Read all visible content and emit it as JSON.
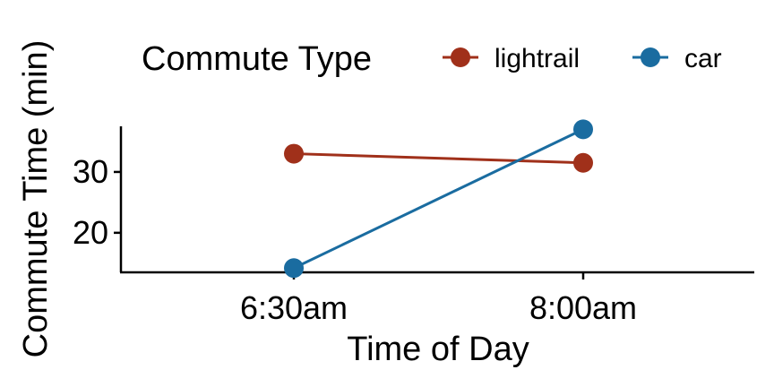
{
  "chart_data": {
    "type": "line",
    "title": "",
    "xlabel": "Time of Day",
    "ylabel": "Commute Time (min)",
    "categories": [
      "6:30am",
      "8:00am"
    ],
    "ylim": [
      13.5,
      37.5
    ],
    "yticks": [
      20,
      30
    ],
    "grid": false,
    "legend": {
      "title": "Commute Type",
      "placement": "top"
    },
    "series": [
      {
        "name": "lightrail",
        "color": "#A0301A",
        "values": [
          33.0,
          31.5
        ]
      },
      {
        "name": "car",
        "color": "#1A6CA0",
        "values": [
          14.2,
          37.0
        ]
      }
    ]
  }
}
